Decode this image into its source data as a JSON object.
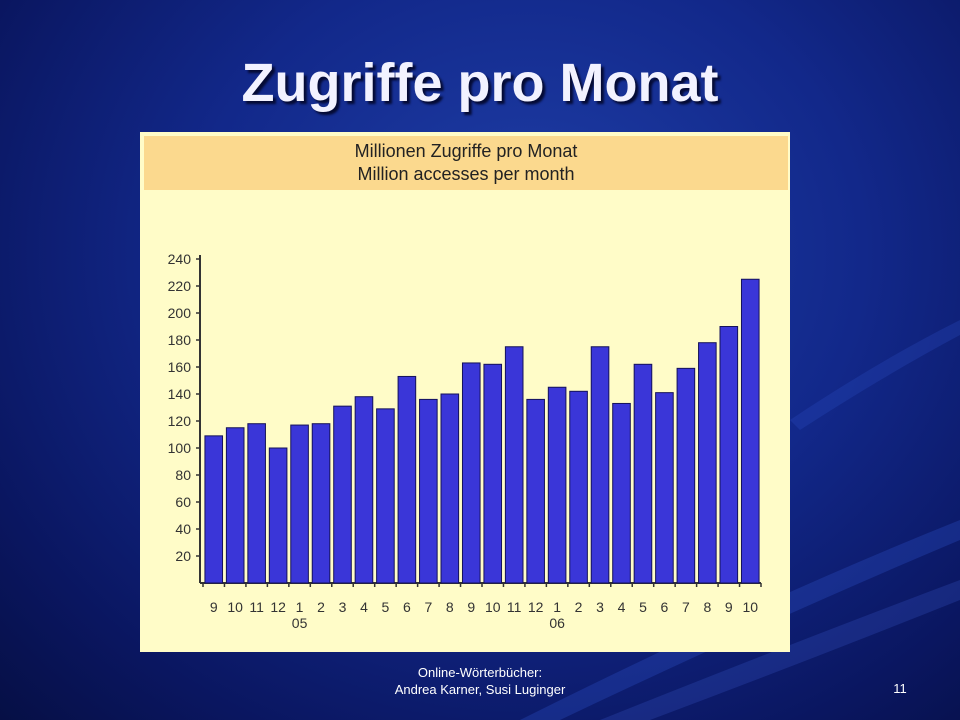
{
  "slide": {
    "title": "Zugriffe pro Monat",
    "footer_line1": "Online-Wörterbücher:",
    "footer_line2": "Andrea Karner, Susi Luginger",
    "page_number": "11"
  },
  "chart_data": {
    "type": "bar",
    "title": "Millionen Zugriffe pro Monat",
    "subtitle": "Million accesses per month",
    "xlabel": "",
    "ylabel": "",
    "categories": [
      "9",
      "10",
      "11",
      "12",
      "1",
      "2",
      "3",
      "4",
      "5",
      "6",
      "7",
      "8",
      "9",
      "10",
      "11",
      "12",
      "1",
      "2",
      "3",
      "4",
      "5",
      "6",
      "7",
      "8",
      "9",
      "10"
    ],
    "year_labels": [
      {
        "index": 4,
        "label": "05"
      },
      {
        "index": 16,
        "label": "06"
      }
    ],
    "values": [
      109,
      115,
      118,
      100,
      117,
      118,
      131,
      138,
      129,
      153,
      136,
      140,
      163,
      162,
      175,
      136,
      145,
      142,
      175,
      133,
      162,
      141,
      159,
      178,
      190,
      225
    ],
    "yticks": [
      20,
      40,
      60,
      80,
      100,
      120,
      140,
      160,
      180,
      200,
      220,
      240
    ],
    "ylim": [
      0,
      240
    ],
    "grid": false,
    "colors": {
      "bar": "#3a36d8",
      "bar_edge": "#15125a",
      "header": "#fbd98e",
      "plot_bg": "#fffcc8"
    }
  }
}
